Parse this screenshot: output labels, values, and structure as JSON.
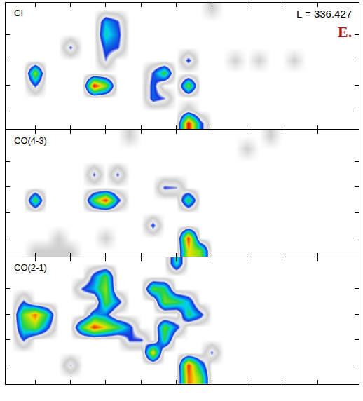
{
  "chart_data": [
    {
      "type": "heatmap",
      "title": "CI",
      "annotations": [
        {
          "text": "L = 336.427"
        },
        {
          "text": "E.",
          "color": "#b01c1c"
        }
      ],
      "xlim": [
        -0.5,
        29.5
      ],
      "ylim": [
        -0.5,
        9.5
      ],
      "xticks": [
        2,
        5,
        8,
        11,
        14,
        17,
        20,
        23,
        26
      ],
      "yticks": [
        1,
        3,
        5,
        7
      ],
      "tick_labels": false,
      "zlim": [
        0,
        4
      ],
      "z": [
        [
          0,
          0,
          0,
          0,
          0,
          0,
          0,
          0,
          0,
          0,
          0,
          0,
          0,
          0,
          0,
          4,
          1.2,
          0,
          0,
          0,
          0,
          0,
          0,
          0,
          0,
          0,
          0,
          0,
          0,
          0
        ],
        [
          0,
          0,
          0,
          0,
          0,
          0,
          0,
          0,
          0,
          0,
          0,
          0,
          0,
          0,
          0,
          0.6,
          0,
          0,
          0,
          0,
          0,
          0,
          0,
          0,
          0,
          0,
          0,
          0,
          0,
          0
        ],
        [
          0,
          0,
          0,
          0,
          0,
          0,
          0,
          0,
          0,
          0,
          0,
          0,
          1.2,
          0.9,
          0,
          0,
          0,
          0,
          0,
          0,
          0,
          0,
          0,
          0,
          0,
          0,
          0,
          0,
          0,
          0
        ],
        [
          0,
          0,
          1,
          0,
          0,
          0,
          0,
          4,
          2.6,
          0,
          0,
          0,
          1.2,
          0,
          0,
          2.5,
          0,
          0,
          0,
          0,
          0,
          0,
          0,
          0,
          0,
          0,
          0,
          0,
          0,
          0
        ],
        [
          0,
          0,
          2.6,
          0,
          0,
          0,
          0,
          0,
          0,
          0,
          0,
          0,
          1,
          2.2,
          0,
          0,
          0,
          0,
          0,
          0,
          0,
          0,
          0,
          0,
          0,
          0,
          0,
          0,
          0,
          0
        ],
        [
          0,
          0,
          0,
          0,
          0,
          0,
          0,
          0,
          0.9,
          0,
          0,
          0,
          0,
          0,
          0,
          1.1,
          0,
          0,
          0,
          0.4,
          0,
          0.4,
          0,
          0,
          0.4,
          0,
          0,
          0,
          0,
          0
        ],
        [
          0,
          0,
          0,
          0,
          0,
          1,
          0,
          0,
          1.2,
          1,
          0,
          0,
          0,
          0,
          0,
          0,
          0,
          0,
          0,
          0,
          0,
          0,
          0,
          0,
          0,
          0,
          0,
          0,
          0,
          0
        ],
        [
          0,
          0,
          0,
          0,
          0,
          0,
          0,
          0,
          1.8,
          1.2,
          0,
          0,
          0,
          0,
          0,
          0,
          0,
          0,
          0,
          0,
          0,
          0,
          0,
          0,
          0,
          0,
          0,
          0,
          0,
          0
        ],
        [
          0,
          0,
          0,
          0,
          0,
          0,
          0,
          0,
          1.5,
          1,
          0,
          0,
          0,
          0,
          0,
          0,
          0,
          0,
          0,
          0,
          0,
          0,
          0,
          0,
          0,
          0,
          0,
          0,
          0,
          0
        ],
        [
          0,
          0,
          0,
          0,
          0,
          0,
          0,
          0,
          0,
          0,
          0,
          0,
          0,
          0,
          0,
          0,
          0,
          0.4,
          0,
          0,
          0,
          0,
          0,
          0,
          0,
          0,
          0,
          0,
          0,
          0
        ]
      ]
    },
    {
      "type": "heatmap",
      "title": "CO(4-3)",
      "xlim": [
        -0.5,
        29.5
      ],
      "ylim": [
        -0.5,
        9.5
      ],
      "xticks": [
        2,
        5,
        8,
        11,
        14,
        17,
        20,
        23,
        26
      ],
      "yticks": [
        1,
        3,
        5,
        7
      ],
      "tick_labels": false,
      "zlim": [
        0,
        4
      ],
      "z": [
        [
          0,
          0,
          0.4,
          0.4,
          0.4,
          0.4,
          0,
          0,
          0,
          0,
          0,
          0,
          0,
          0,
          0,
          3,
          2.5,
          0,
          0,
          0,
          0,
          0,
          0,
          0,
          0,
          0,
          0,
          0,
          0,
          0
        ],
        [
          0,
          0,
          0,
          0,
          0.4,
          0,
          0,
          0,
          0.4,
          0,
          0,
          0,
          0,
          0,
          0,
          3.8,
          0,
          0,
          0,
          0,
          0,
          0,
          0,
          0,
          0,
          0,
          0,
          0,
          0,
          0
        ],
        [
          0,
          0,
          0,
          0,
          0,
          0,
          0,
          0,
          0,
          0,
          0,
          0,
          1.1,
          0,
          0,
          0,
          0,
          0,
          0,
          0,
          0,
          0,
          0,
          0,
          0,
          0,
          0,
          0,
          0,
          0
        ],
        [
          0,
          0,
          0,
          0,
          0,
          0,
          0,
          0,
          0,
          0,
          0,
          0,
          0,
          0,
          0,
          0,
          0,
          0,
          0,
          0,
          0,
          0,
          0,
          0,
          0,
          0,
          0,
          0,
          0,
          0
        ],
        [
          0,
          0,
          2.3,
          0,
          0,
          0,
          0,
          2.3,
          3.8,
          1.2,
          0,
          0,
          0,
          0,
          0,
          2.2,
          0,
          0,
          0,
          0,
          0,
          0,
          0,
          0,
          0,
          0,
          0,
          0,
          0,
          0
        ],
        [
          0,
          0,
          0,
          0,
          0,
          0,
          0,
          0,
          0,
          0,
          0,
          0,
          0,
          1,
          0.9,
          0,
          0,
          0,
          0,
          0,
          0,
          0,
          0,
          0,
          0,
          0,
          0,
          0,
          0,
          0
        ],
        [
          0,
          0,
          0,
          0,
          0,
          0,
          0,
          1,
          0,
          1,
          0,
          0,
          0,
          0,
          0,
          0,
          0,
          0,
          0,
          0,
          0,
          0,
          0,
          0,
          0,
          0,
          0,
          0,
          0,
          0
        ],
        [
          0,
          0,
          0,
          0,
          0,
          0,
          0,
          0,
          0,
          0,
          0,
          0,
          0,
          0,
          0,
          0,
          0,
          0,
          0,
          0,
          0,
          0,
          0,
          0,
          0,
          0,
          0,
          0,
          0,
          0
        ],
        [
          0,
          0,
          0,
          0,
          0,
          0,
          0,
          0,
          0,
          0,
          0,
          0,
          0,
          0,
          0,
          0,
          0,
          0,
          0,
          0,
          0.4,
          0,
          0,
          0,
          0,
          0,
          0,
          0,
          0,
          0
        ],
        [
          0,
          0,
          0,
          0,
          0,
          0,
          0,
          0,
          0,
          0,
          0.4,
          0,
          0,
          0,
          0,
          0,
          0,
          0,
          0,
          0,
          0,
          0,
          0.4,
          0,
          0,
          0,
          0,
          0,
          0,
          0
        ]
      ]
    },
    {
      "type": "heatmap",
      "title": "CO(2-1)",
      "xlim": [
        -0.5,
        29.5
      ],
      "ylim": [
        -0.5,
        9.5
      ],
      "xticks": [
        2,
        5,
        8,
        11,
        14,
        17,
        20,
        23,
        26
      ],
      "yticks": [
        1,
        3,
        5,
        7
      ],
      "tick_labels": false,
      "zlim": [
        0,
        4
      ],
      "z": [
        [
          0,
          0,
          0,
          0,
          0,
          0,
          0,
          0,
          0,
          0,
          0,
          0,
          0,
          0,
          0,
          3.5,
          2.5,
          0,
          0,
          0,
          0,
          0,
          0,
          0,
          0,
          0,
          0,
          0,
          0,
          0
        ],
        [
          0,
          0,
          0,
          0,
          0,
          0.9,
          0,
          0,
          0,
          0,
          0,
          0,
          0,
          0,
          0,
          3.8,
          1.5,
          0,
          0,
          0,
          0,
          0,
          0,
          0,
          0,
          0,
          0,
          0,
          0,
          0
        ],
        [
          0,
          0,
          0,
          0,
          0,
          0,
          0,
          0,
          0,
          0,
          0,
          0,
          3.2,
          0,
          0,
          0,
          0,
          1,
          0,
          0,
          0,
          0,
          0,
          0,
          0,
          0,
          0,
          0,
          0,
          0
        ],
        [
          0,
          1,
          0,
          0,
          0,
          0,
          0,
          0,
          0,
          0,
          1,
          1,
          0,
          2,
          0,
          0,
          0,
          0,
          0,
          0,
          0,
          0,
          0,
          0,
          0,
          0,
          0,
          0,
          0,
          0
        ],
        [
          0,
          2,
          2.5,
          1.2,
          0,
          0,
          2.3,
          3.8,
          3,
          2.2,
          1.2,
          0,
          0,
          2.3,
          1.2,
          0,
          0,
          0,
          0,
          0,
          0,
          0,
          0,
          0,
          0,
          0,
          0,
          0,
          0,
          0
        ],
        [
          0,
          2.5,
          3.5,
          2,
          0,
          0,
          0,
          1.5,
          1.2,
          0,
          0,
          0,
          0,
          0,
          0,
          2,
          1.2,
          0,
          0,
          0,
          0,
          0,
          0,
          0,
          0,
          0,
          0,
          0,
          0,
          0
        ],
        [
          0,
          1,
          0,
          0,
          0,
          0,
          0,
          0,
          2.3,
          1.3,
          0,
          0,
          0,
          2.5,
          2.2,
          1.5,
          0,
          0,
          0,
          0,
          0,
          0,
          0,
          0,
          0,
          0,
          0,
          0,
          0,
          0
        ],
        [
          0,
          0,
          0,
          0,
          0,
          0,
          1,
          1.5,
          2.6,
          0,
          0,
          0,
          2.3,
          2,
          0,
          0,
          0,
          0,
          0,
          0,
          0,
          0,
          0,
          0,
          0,
          0,
          0,
          0,
          0,
          0
        ],
        [
          0,
          0,
          0,
          0,
          0,
          0,
          0,
          1.2,
          2.2,
          0,
          0,
          0,
          0,
          0,
          0,
          0,
          0,
          0,
          0,
          0,
          0,
          0,
          0,
          0,
          0,
          0,
          0,
          0,
          0,
          0
        ],
        [
          0,
          0,
          0,
          0,
          0,
          0,
          0,
          0,
          0,
          0,
          0,
          0,
          0,
          0,
          1.8,
          0,
          0,
          0,
          0,
          0,
          0,
          0,
          0,
          0,
          0,
          0,
          0,
          0,
          0,
          0
        ]
      ]
    }
  ]
}
